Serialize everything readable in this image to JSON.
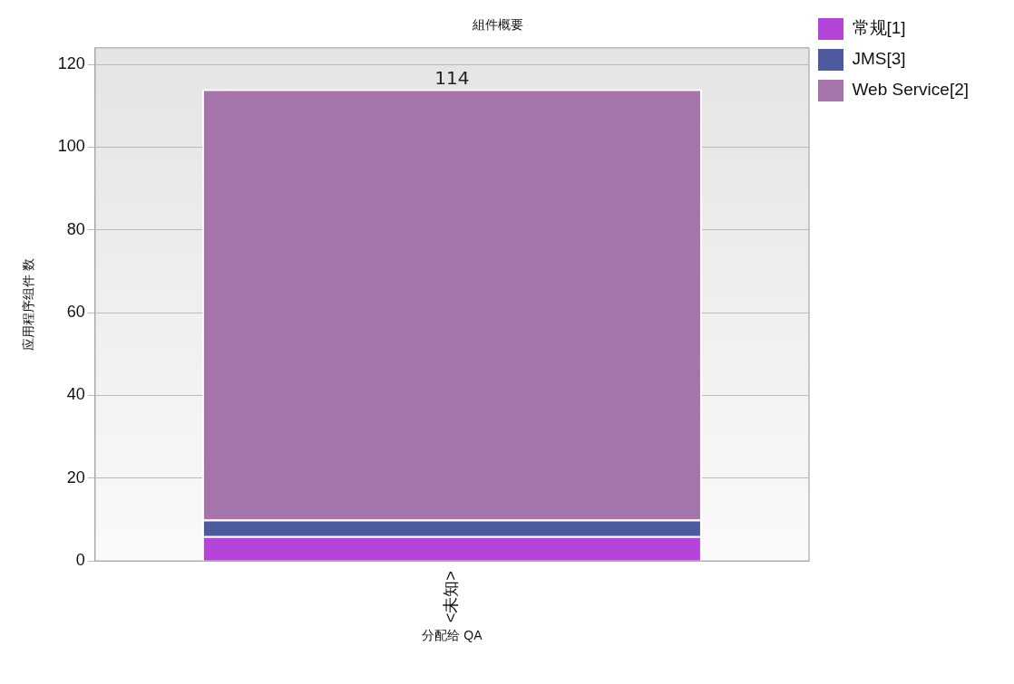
{
  "chart_data": {
    "type": "bar",
    "title": "組件概要",
    "xlabel": "分配给 QA",
    "ylabel": "应用程序组件 数",
    "categories": [
      "<未知>"
    ],
    "stacked": true,
    "series": [
      {
        "name": "常规[1]",
        "color": "#b544d9",
        "values": [
          6
        ]
      },
      {
        "name": "JMS[3]",
        "color": "#4d5a9e",
        "values": [
          4
        ]
      },
      {
        "name": "Web Service[2]",
        "color": "#a474aa",
        "values": [
          104
        ]
      }
    ],
    "ylim": [
      0,
      124
    ],
    "yticks": [
      0,
      20,
      40,
      60,
      80,
      100,
      120
    ],
    "grid": "y",
    "legend": "top right",
    "totals": [
      "114"
    ]
  }
}
